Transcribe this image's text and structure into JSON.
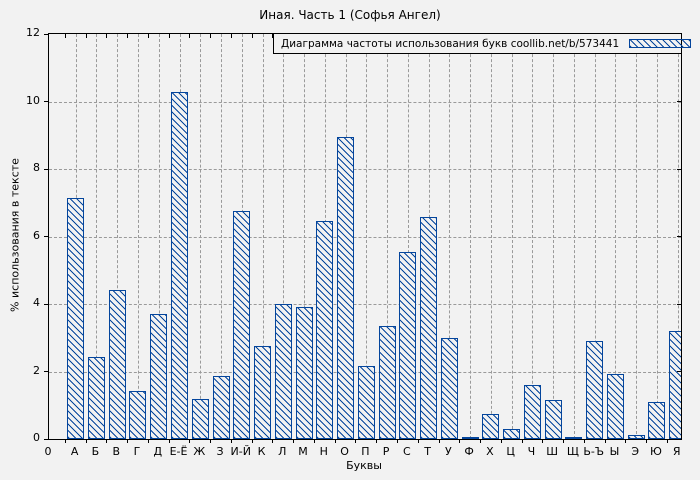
{
  "chart_data": {
    "type": "bar",
    "title": "Иная. Часть 1 (Софья Ангел)",
    "legend": "Диаграмма частоты использования букв coollib.net/b/573441",
    "legend_position": "top-right",
    "xlabel": "Буквы",
    "ylabel": "% использования в тексте",
    "origin_label": "0",
    "ylim": [
      0,
      12
    ],
    "yticks": [
      0,
      2,
      4,
      6,
      8,
      10,
      12
    ],
    "grid": true,
    "categories": [
      "А",
      "Б",
      "В",
      "Г",
      "Д",
      "Е-Ё",
      "Ж",
      "З",
      "И-Й",
      "К",
      "Л",
      "М",
      "Н",
      "О",
      "П",
      "Р",
      "С",
      "Т",
      "У",
      "Ф",
      "Х",
      "Ц",
      "Ч",
      "Ш",
      "Щ",
      "Ь-Ъ",
      "Ы",
      "Э",
      "Ю",
      "Я"
    ],
    "values": [
      7.15,
      2.42,
      4.43,
      1.42,
      3.7,
      10.28,
      1.19,
      1.87,
      6.76,
      2.77,
      4.01,
      3.91,
      6.46,
      8.95,
      2.16,
      3.35,
      5.55,
      6.58,
      3.0,
      0.05,
      0.73,
      0.31,
      1.59,
      1.15,
      0.07,
      2.91,
      1.94,
      0.11,
      1.09,
      3.21
    ],
    "colors": {
      "bar_stroke": "#04459c",
      "background": "#f2f2f2",
      "grid": "#9a9a9a",
      "axis": "#000000"
    }
  }
}
